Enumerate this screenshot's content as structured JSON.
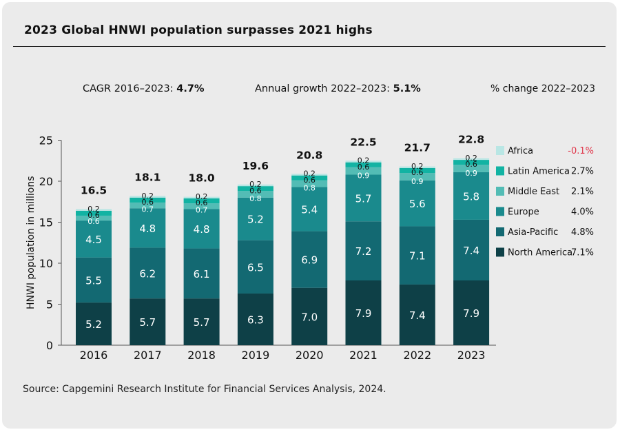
{
  "title": "2023 Global HNWI population surpasses 2021 highs",
  "cagr_label": "CAGR 2016–2023: ",
  "cagr_value": "4.7%",
  "growth_label": "Annual growth 2022–2023: ",
  "growth_value": "5.1%",
  "pct_header": "% change 2022–2023",
  "source": "Source: Capgemini Research Institute for Financial Services Analysis, 2024.",
  "chart_data": {
    "type": "bar",
    "stacked": true,
    "ylabel": "HNWI population in millions",
    "ylim": [
      0,
      25
    ],
    "yticks": [
      "0",
      "5",
      "10",
      "15",
      "20",
      "25"
    ],
    "categories": [
      "2016",
      "2017",
      "2018",
      "2019",
      "2020",
      "2021",
      "2022",
      "2023"
    ],
    "totals": [
      "16.5",
      "18.1",
      "18.0",
      "19.6",
      "20.8",
      "22.5",
      "21.7",
      "22.8"
    ],
    "series": [
      {
        "name": "North America",
        "color": "#0e4047",
        "change": "7.1%",
        "change_color": "#111111",
        "label_color": "#ffffff",
        "values": [
          5.2,
          5.7,
          5.7,
          6.3,
          7.0,
          7.9,
          7.4,
          7.9
        ],
        "labels": [
          "5.2",
          "5.7",
          "5.7",
          "6.3",
          "7.0",
          "7.9",
          "7.4",
          "7.9"
        ]
      },
      {
        "name": "Asia-Pacific",
        "color": "#136972",
        "change": "4.8%",
        "change_color": "#111111",
        "label_color": "#ffffff",
        "values": [
          5.5,
          6.2,
          6.1,
          6.5,
          6.9,
          7.2,
          7.1,
          7.4
        ],
        "labels": [
          "5.5",
          "6.2",
          "6.1",
          "6.5",
          "6.9",
          "7.2",
          "7.1",
          "7.4"
        ]
      },
      {
        "name": "Europe",
        "color": "#1a8a8d",
        "change": "4.0%",
        "change_color": "#111111",
        "label_color": "#ffffff",
        "values": [
          4.5,
          4.8,
          4.8,
          5.2,
          5.4,
          5.7,
          5.6,
          5.8
        ],
        "labels": [
          "4.5",
          "4.8",
          "4.8",
          "5.2",
          "5.4",
          "5.7",
          "5.6",
          "5.8"
        ]
      },
      {
        "name": "Middle East",
        "color": "#53bcb5",
        "change": "2.1%",
        "change_color": "#111111",
        "label_color": "#ffffff",
        "values": [
          0.6,
          0.7,
          0.7,
          0.8,
          0.8,
          0.9,
          0.9,
          0.9
        ],
        "labels": [
          "0.6",
          "0.7",
          "0.7",
          "0.8",
          "0.8",
          "0.9",
          "0.9",
          "0.9"
        ]
      },
      {
        "name": "Latin America",
        "color": "#12b3a3",
        "change": "2.7%",
        "change_color": "#111111",
        "label_color": "#111111",
        "values": [
          0.6,
          0.6,
          0.6,
          0.6,
          0.6,
          0.6,
          0.6,
          0.6
        ],
        "labels": [
          "0.6",
          "0.6",
          "0.6",
          "0.6",
          "0.6",
          "0.6",
          "0.6",
          "0.6"
        ]
      },
      {
        "name": "Africa",
        "color": "#b9e6e4",
        "change": "-0.1%",
        "change_color": "#e0364a",
        "label_color": "#111111",
        "values": [
          0.2,
          0.2,
          0.2,
          0.2,
          0.2,
          0.2,
          0.2,
          0.2
        ],
        "labels": [
          "0.2",
          "0.2",
          "0.2",
          "0.2",
          "0.2",
          "0.2",
          "0.2",
          "0.2"
        ]
      }
    ]
  }
}
